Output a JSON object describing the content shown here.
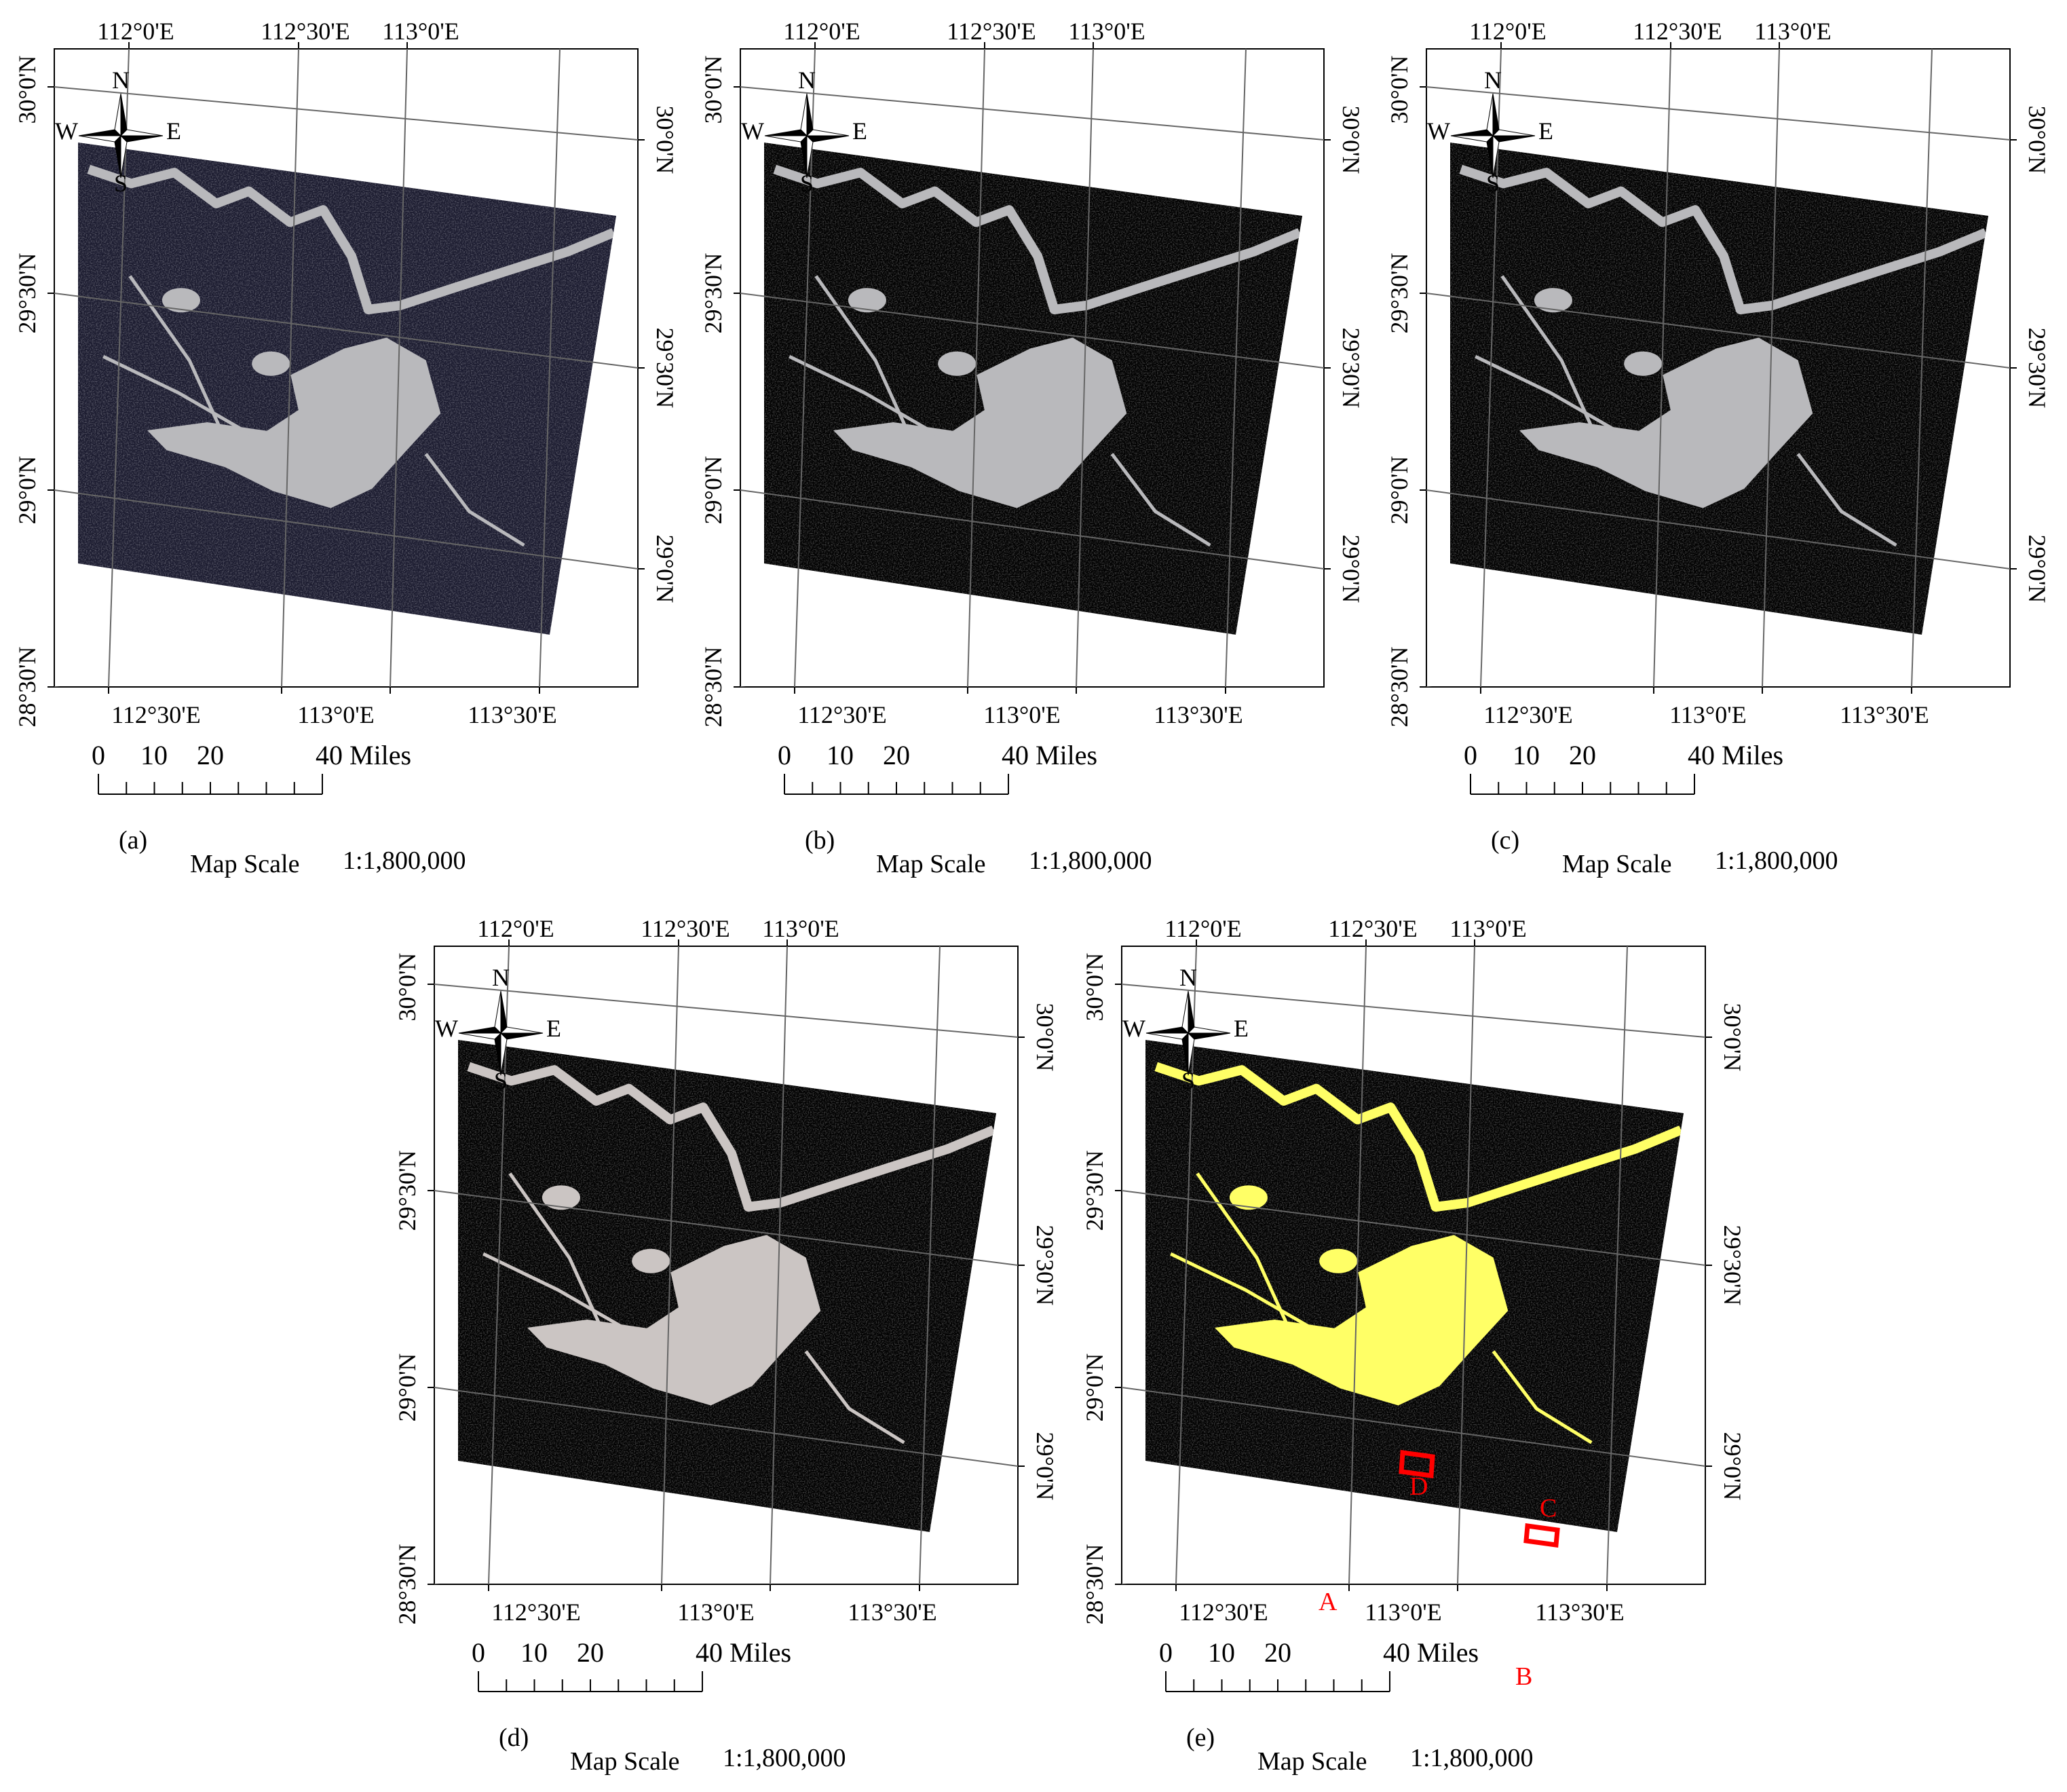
{
  "panels": [
    {
      "id": "a",
      "caption": "(a)",
      "top_lon": [
        "112°0'E",
        "112°30'E",
        "113°0'E"
      ],
      "bottom_lon": [
        "112°30'E",
        "113°0'E",
        "113°30'E"
      ],
      "left_lat": [
        "30°0'N",
        "29°30'N",
        "29°0'N",
        "28°30'N"
      ],
      "right_lat": [
        "30°0'N",
        "29°30'N",
        "29°0'N"
      ],
      "scale_ticks": [
        "0",
        "10",
        "20",
        "40 Miles"
      ],
      "map_scale_label": "Map Scale",
      "map_scale_value": "1:1,800,000",
      "compass": [
        "N",
        "S",
        "W",
        "E"
      ],
      "colors": {
        "background": "#1b1b30",
        "class_a": "#6468a8",
        "class_b": "#b9b9bc"
      }
    },
    {
      "id": "b",
      "caption": "(b)",
      "top_lon": [
        "112°0'E",
        "112°30'E",
        "113°0'E"
      ],
      "bottom_lon": [
        "112°30'E",
        "113°0'E",
        "113°30'E"
      ],
      "left_lat": [
        "30°0'N",
        "29°30'N",
        "29°0'N",
        "28°30'N"
      ],
      "right_lat": [
        "30°0'N",
        "29°30'N",
        "29°0'N"
      ],
      "scale_ticks": [
        "0",
        "10",
        "20",
        "40 Miles"
      ],
      "map_scale_label": "Map Scale",
      "map_scale_value": "1:1,800,000",
      "compass": [
        "N",
        "S",
        "W",
        "E"
      ],
      "colors": {
        "background": "#000000",
        "class_a": "#e8e37a",
        "class_b": "#b9b9bc"
      }
    },
    {
      "id": "c",
      "caption": "(c)",
      "top_lon": [
        "112°0'E",
        "112°30'E",
        "113°0'E"
      ],
      "bottom_lon": [
        "112°30'E",
        "113°0'E",
        "113°30'E"
      ],
      "left_lat": [
        "30°0'N",
        "29°30'N",
        "29°0'N",
        "28°30'N"
      ],
      "right_lat": [
        "30°0'N",
        "29°30'N",
        "29°0'N"
      ],
      "scale_ticks": [
        "0",
        "10",
        "20",
        "40 Miles"
      ],
      "map_scale_label": "Map Scale",
      "map_scale_value": "1:1,800,000",
      "compass": [
        "N",
        "S",
        "W",
        "E"
      ],
      "colors": {
        "background": "#000000",
        "class_a": "#f0ec6a",
        "class_b": "#b9b9bc"
      }
    },
    {
      "id": "d",
      "caption": "(d)",
      "top_lon": [
        "112°0'E",
        "112°30'E",
        "113°0'E"
      ],
      "bottom_lon": [
        "112°30'E",
        "113°0'E",
        "113°30'E"
      ],
      "left_lat": [
        "30°0'N",
        "29°30'N",
        "29°0'N",
        "28°30'N"
      ],
      "right_lat": [
        "30°0'N",
        "29°30'N",
        "29°0'N"
      ],
      "scale_ticks": [
        "0",
        "10",
        "20",
        "40 Miles"
      ],
      "map_scale_label": "Map Scale",
      "map_scale_value": "1:1,800,000",
      "compass": [
        "N",
        "S",
        "W",
        "E"
      ],
      "colors": {
        "background": "#000000",
        "class_a": "#d9d37a",
        "class_b": "#cbc5c3"
      }
    },
    {
      "id": "e",
      "caption": "(e)",
      "top_lon": [
        "112°0'E",
        "112°30'E",
        "113°0'E"
      ],
      "bottom_lon": [
        "112°30'E",
        "113°0'E",
        "113°30'E"
      ],
      "left_lat": [
        "30°0'N",
        "29°30'N",
        "29°0'N",
        "28°30'N"
      ],
      "right_lat": [
        "30°0'N",
        "29°30'N",
        "29°0'N"
      ],
      "scale_ticks": [
        "0",
        "10",
        "20",
        "40 Miles"
      ],
      "map_scale_label": "Map Scale",
      "map_scale_value": "1:1,800,000",
      "compass": [
        "N",
        "S",
        "W",
        "E"
      ],
      "colors": {
        "background": "#000000",
        "class_a": "#ffff66",
        "class_b": "#ffff66"
      },
      "regions": [
        "A",
        "B",
        "C",
        "D"
      ],
      "region_color": "#ff0000"
    }
  ]
}
